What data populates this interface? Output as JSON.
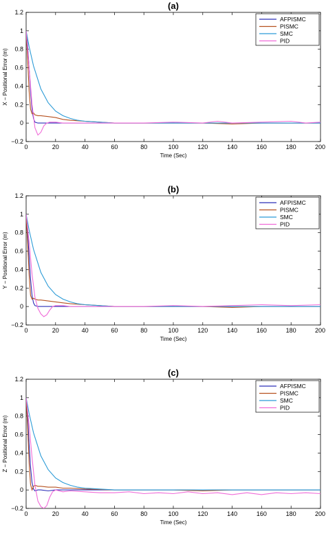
{
  "colors": {
    "AFPISMC": "#2b2fb8",
    "PISMC": "#b5501e",
    "SMC": "#2a9ad6",
    "PID": "#f06ad8"
  },
  "chart_data": [
    {
      "type": "line",
      "title": "(a)",
      "xlabel": "Time (Sec)",
      "ylabel": "X − Positional Error (m)",
      "xlim": [
        0,
        200
      ],
      "ylim": [
        -0.2,
        1.2
      ],
      "xticks": [
        "0",
        "20",
        "40",
        "60",
        "80",
        "100",
        "120",
        "140",
        "160",
        "180",
        "200"
      ],
      "yticks": [
        "−0.2",
        "0",
        "0.2",
        "0.4",
        "0.6",
        "0.8",
        "1",
        "1.2"
      ],
      "legend_position": "top-right",
      "series": [
        {
          "name": "AFPISMC",
          "x": [
            0,
            1,
            2,
            3,
            4,
            5,
            6,
            8,
            10,
            15,
            20,
            30,
            50,
            70,
            90,
            110,
            130,
            150,
            170,
            190,
            200
          ],
          "y": [
            1.0,
            0.85,
            0.6,
            0.35,
            0.15,
            0.05,
            0.01,
            0.0,
            0.0,
            0.0,
            0.0,
            0.0,
            0.0,
            0.0,
            0.0,
            0.0,
            0.0,
            0.0,
            0.0,
            0.0,
            0.0
          ]
        },
        {
          "name": "PISMC",
          "x": [
            0,
            1,
            2,
            3,
            4,
            5,
            6,
            8,
            10,
            15,
            20,
            25,
            30,
            40,
            60,
            80,
            100,
            120,
            140,
            160,
            180,
            200
          ],
          "y": [
            1.0,
            0.7,
            0.35,
            0.15,
            0.1,
            0.11,
            0.09,
            0.08,
            0.08,
            0.07,
            0.06,
            0.04,
            0.03,
            0.02,
            0.0,
            0.0,
            0.0,
            0.0,
            -0.01,
            0.0,
            0.0,
            0.0
          ]
        },
        {
          "name": "SMC",
          "x": [
            0,
            2,
            5,
            10,
            15,
            20,
            25,
            30,
            35,
            40,
            50,
            60,
            80,
            100,
            150,
            200
          ],
          "y": [
            1.0,
            0.83,
            0.62,
            0.37,
            0.22,
            0.13,
            0.08,
            0.05,
            0.03,
            0.02,
            0.01,
            0.0,
            0.0,
            0.0,
            0.0,
            0.0
          ]
        },
        {
          "name": "PID",
          "x": [
            0,
            2,
            4,
            6,
            8,
            10,
            12,
            14,
            16,
            20,
            25,
            30,
            40,
            60,
            80,
            100,
            120,
            130,
            140,
            160,
            180,
            190,
            200
          ],
          "y": [
            1.0,
            0.6,
            0.2,
            -0.05,
            -0.13,
            -0.1,
            -0.03,
            0.0,
            0.01,
            0.01,
            0.0,
            0.0,
            0.0,
            0.0,
            0.0,
            0.01,
            0.0,
            0.02,
            0.0,
            0.01,
            0.02,
            0.0,
            0.01
          ]
        }
      ]
    },
    {
      "type": "line",
      "title": "(b)",
      "xlabel": "Time (Sec)",
      "ylabel": "Y − Positional Error (m)",
      "xlim": [
        0,
        200
      ],
      "ylim": [
        -0.2,
        1.2
      ],
      "xticks": [
        "0",
        "20",
        "40",
        "60",
        "80",
        "100",
        "120",
        "140",
        "160",
        "180",
        "200"
      ],
      "yticks": [
        "−0.2",
        "0",
        "0.2",
        "0.4",
        "0.6",
        "0.8",
        "1",
        "1.2"
      ],
      "legend_position": "top-right",
      "series": [
        {
          "name": "AFPISMC",
          "x": [
            0,
            1,
            2,
            3,
            4,
            5,
            6,
            8,
            10,
            15,
            20,
            30,
            50,
            70,
            90,
            110,
            130,
            150,
            170,
            190,
            200
          ],
          "y": [
            1.0,
            0.8,
            0.55,
            0.3,
            0.12,
            0.04,
            0.01,
            0.0,
            0.0,
            0.0,
            0.0,
            0.0,
            0.0,
            0.0,
            0.0,
            0.0,
            0.0,
            0.0,
            0.0,
            0.0,
            0.0
          ]
        },
        {
          "name": "PISMC",
          "x": [
            0,
            1,
            2,
            3,
            4,
            5,
            6,
            8,
            10,
            15,
            20,
            25,
            30,
            40,
            60,
            80,
            100,
            120,
            140,
            160,
            180,
            200
          ],
          "y": [
            1.0,
            0.7,
            0.35,
            0.12,
            0.08,
            0.09,
            0.08,
            0.07,
            0.07,
            0.06,
            0.05,
            0.04,
            0.03,
            0.02,
            0.0,
            0.0,
            0.0,
            0.0,
            -0.01,
            0.0,
            0.0,
            0.0
          ]
        },
        {
          "name": "SMC",
          "x": [
            0,
            2,
            5,
            10,
            15,
            20,
            25,
            30,
            35,
            40,
            50,
            60,
            80,
            100,
            150,
            200
          ],
          "y": [
            1.0,
            0.83,
            0.62,
            0.37,
            0.22,
            0.13,
            0.08,
            0.05,
            0.03,
            0.02,
            0.01,
            0.0,
            0.0,
            0.0,
            0.0,
            0.0
          ]
        },
        {
          "name": "PID",
          "x": [
            0,
            2,
            4,
            6,
            8,
            10,
            12,
            14,
            16,
            18,
            20,
            25,
            30,
            40,
            60,
            80,
            100,
            120,
            140,
            160,
            180,
            200
          ],
          "y": [
            1.0,
            0.7,
            0.35,
            0.1,
            -0.02,
            -0.08,
            -0.11,
            -0.09,
            -0.04,
            0.0,
            0.01,
            0.01,
            0.0,
            0.0,
            0.0,
            0.0,
            0.01,
            0.0,
            0.01,
            0.02,
            0.01,
            0.02
          ]
        }
      ]
    },
    {
      "type": "line",
      "title": "(c)",
      "xlabel": "Time (Sec)",
      "ylabel": "Z − Positional Error (m)",
      "xlim": [
        0,
        200
      ],
      "ylim": [
        -0.2,
        1.2
      ],
      "xticks": [
        "0",
        "20",
        "40",
        "60",
        "80",
        "100",
        "120",
        "140",
        "160",
        "180",
        "200"
      ],
      "yticks": [
        "−0.2",
        "0",
        "0.2",
        "0.4",
        "0.6",
        "0.8",
        "1",
        "1.2"
      ],
      "legend_position": "top-right",
      "series": [
        {
          "name": "AFPISMC",
          "x": [
            0,
            1,
            2,
            3,
            4,
            5,
            6,
            8,
            10,
            15,
            20,
            30,
            50,
            70,
            90,
            110,
            130,
            150,
            170,
            190,
            200
          ],
          "y": [
            1.0,
            0.8,
            0.5,
            0.25,
            0.08,
            0.01,
            -0.01,
            0.0,
            0.0,
            -0.01,
            0.0,
            0.0,
            0.0,
            0.0,
            0.0,
            0.0,
            0.0,
            0.0,
            0.0,
            0.0,
            0.0
          ]
        },
        {
          "name": "PISMC",
          "x": [
            0,
            1,
            2,
            3,
            4,
            5,
            6,
            8,
            10,
            15,
            20,
            25,
            30,
            40,
            60,
            80,
            100,
            120,
            140,
            160,
            180,
            200
          ],
          "y": [
            1.0,
            0.7,
            0.3,
            0.06,
            0.0,
            0.04,
            0.05,
            0.04,
            0.04,
            0.03,
            0.03,
            0.02,
            0.02,
            0.01,
            0.0,
            0.0,
            0.0,
            -0.01,
            0.0,
            0.0,
            0.0,
            0.0
          ]
        },
        {
          "name": "SMC",
          "x": [
            0,
            2,
            5,
            10,
            15,
            20,
            25,
            30,
            35,
            40,
            50,
            60,
            80,
            100,
            150,
            200
          ],
          "y": [
            1.0,
            0.83,
            0.62,
            0.37,
            0.22,
            0.13,
            0.08,
            0.05,
            0.03,
            0.02,
            0.01,
            0.0,
            0.0,
            0.0,
            0.0,
            0.0
          ]
        },
        {
          "name": "PID",
          "x": [
            0,
            2,
            4,
            6,
            8,
            10,
            12,
            14,
            16,
            18,
            20,
            25,
            30,
            40,
            50,
            60,
            70,
            80,
            90,
            100,
            110,
            120,
            130,
            140,
            150,
            160,
            170,
            180,
            190,
            200
          ],
          "y": [
            1.0,
            0.7,
            0.35,
            0.05,
            -0.12,
            -0.18,
            -0.2,
            -0.17,
            -0.08,
            -0.02,
            0.0,
            -0.02,
            -0.01,
            -0.02,
            -0.03,
            -0.03,
            -0.02,
            -0.04,
            -0.03,
            -0.04,
            -0.02,
            -0.04,
            -0.03,
            -0.05,
            -0.03,
            -0.05,
            -0.03,
            -0.04,
            -0.03,
            -0.04
          ]
        }
      ]
    }
  ]
}
